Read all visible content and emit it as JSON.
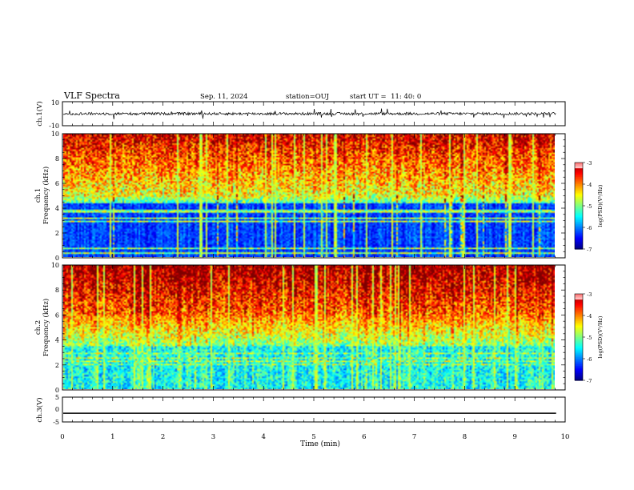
{
  "header": {
    "title": "VLF Spectra",
    "date": "Sep. 11, 2024",
    "station": "station=OUJ",
    "start": "start UT =  11: 40: 0"
  },
  "chart_data": [
    {
      "type": "line",
      "panel": "ch1-waveform",
      "ylabel": "ch.1(V)",
      "ylim": [
        -10,
        10
      ],
      "yticks": [
        "10",
        "-10"
      ],
      "baseline": 0,
      "color": "#000000"
    },
    {
      "type": "heatmap",
      "panel": "ch1-spectrogram",
      "ylabel": "ch.1\nFrequency (kHz)",
      "ylabel_lines": [
        "ch.1",
        "Frequency (kHz)"
      ],
      "ylim": [
        0,
        10
      ],
      "yticks": [
        "0",
        "2",
        "4",
        "6",
        "8",
        "10"
      ],
      "colorbar": {
        "label": "log(PSD)(V²/Hz)",
        "range": [
          -7,
          -3
        ],
        "ticks": [
          "-3",
          "-4",
          "-5",
          "-6",
          "-7"
        ]
      }
    },
    {
      "type": "heatmap",
      "panel": "ch2-spectrogram",
      "ylabel": "ch.2\nFrequency (kHz)",
      "ylabel_lines": [
        "ch.2",
        "Frequency (kHz)"
      ],
      "ylim": [
        0,
        10
      ],
      "yticks": [
        "0",
        "2",
        "4",
        "6",
        "8",
        "10"
      ],
      "colorbar": {
        "label": "log(PSD)(V²/Hz)",
        "range": [
          -7,
          -3
        ],
        "ticks": [
          "-3",
          "-4",
          "-5",
          "-6",
          "-7"
        ]
      }
    },
    {
      "type": "line",
      "panel": "ch3-waveform",
      "ylabel": "ch.3(V)",
      "ylim": [
        -5,
        5
      ],
      "yticks": [
        "5",
        "0",
        "-5"
      ],
      "value": -1.5,
      "color": "#000000"
    }
  ],
  "xaxis": {
    "label": "Time (min)",
    "ticks": [
      "0",
      "1",
      "2",
      "3",
      "4",
      "5",
      "6",
      "7",
      "8",
      "9",
      "10"
    ],
    "range": [
      0,
      10
    ],
    "data_end": 9.82
  }
}
